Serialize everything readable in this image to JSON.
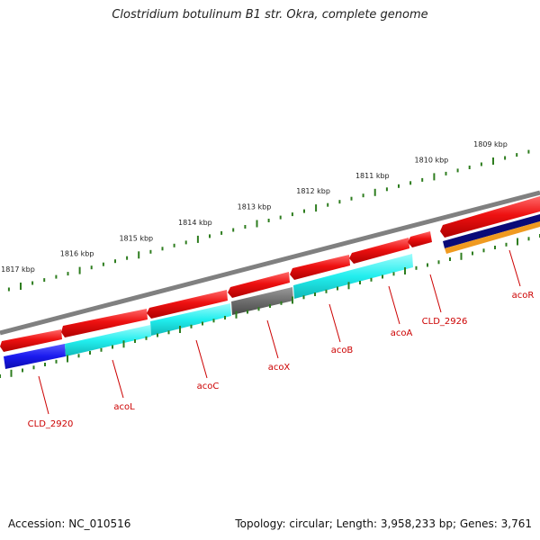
{
  "title": "Clostridium botulinum B1 str. Okra, complete genome",
  "ticks": [
    {
      "label": "1809 kbp",
      "pos": 1809
    },
    {
      "label": "1810 kbp",
      "pos": 1810
    },
    {
      "label": "1811 kbp",
      "pos": 1811
    },
    {
      "label": "1812 kbp",
      "pos": 1812
    },
    {
      "label": "1813 kbp",
      "pos": 1813
    },
    {
      "label": "1814 kbp",
      "pos": 1814
    },
    {
      "label": "1815 kbp",
      "pos": 1815
    },
    {
      "label": "1816 kbp",
      "pos": 1816
    },
    {
      "label": "1817 kbp",
      "pos": 1817
    }
  ],
  "genes": [
    {
      "name": "CLD_2920"
    },
    {
      "name": "acoL"
    },
    {
      "name": "acoC"
    },
    {
      "name": "acoX"
    },
    {
      "name": "acoB"
    },
    {
      "name": "acoA"
    },
    {
      "name": "CLD_2926"
    },
    {
      "name": "acoR"
    }
  ],
  "colors": {
    "backbone": "#808080",
    "tick": "#2e7d1f",
    "cds_arrow": "#ee1111",
    "label": "#cc0000",
    "blue_block": "#1a1aee",
    "cyan_block": "#22eeee",
    "gray_block": "#6e6e6e",
    "navy_block": "#0a0a78",
    "orange_block": "#f09a20"
  },
  "footer": {
    "accession": "Accession: NC_010516",
    "summary": "Topology: circular; Length: 3,958,233 bp; Genes: 3,761"
  }
}
